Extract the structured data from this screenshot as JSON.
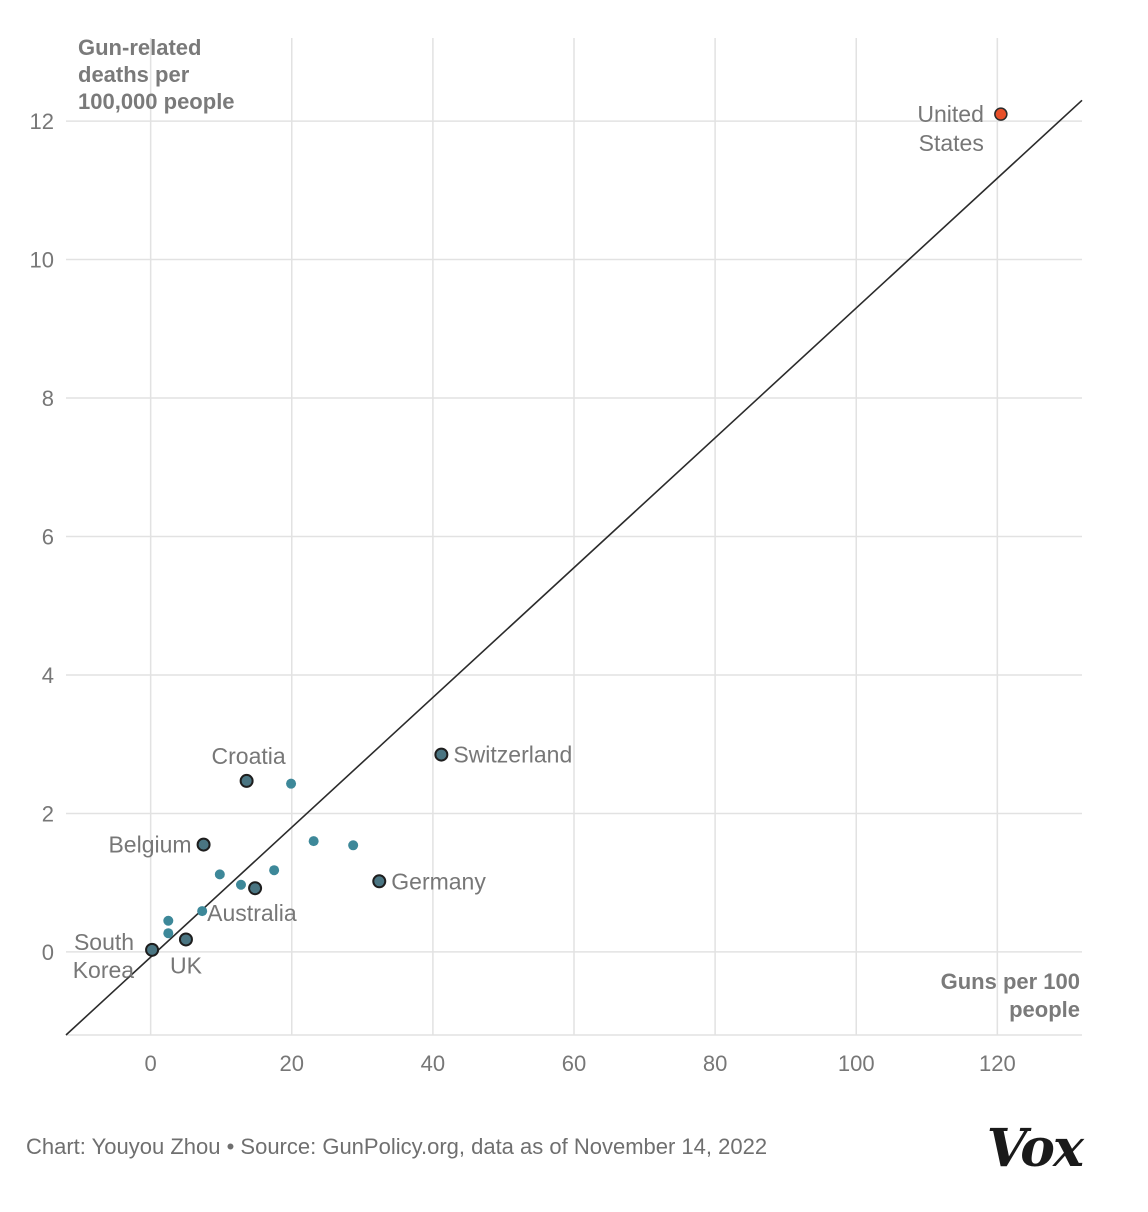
{
  "chart_data": {
    "type": "scatter",
    "xlabel": [
      "Guns per 100",
      "people"
    ],
    "ylabel": [
      "Gun-related",
      "deaths per",
      "100,000 people"
    ],
    "xlim": [
      -12,
      132
    ],
    "ylim": [
      -1.2,
      13.2
    ],
    "xticks": [
      0,
      20,
      40,
      60,
      80,
      100,
      120
    ],
    "yticks": [
      0,
      2,
      4,
      6,
      8,
      10,
      12
    ],
    "grid": true,
    "trendline": {
      "x1": -12,
      "y1": -1.2,
      "x2": 132,
      "y2": 12.3
    },
    "points": [
      {
        "x": 0.2,
        "y": 0.03,
        "label": [
          "South",
          "Korea"
        ],
        "highlight": true
      },
      {
        "x": 5,
        "y": 0.18,
        "label": [
          "UK"
        ],
        "highlight": true
      },
      {
        "x": 7.5,
        "y": 1.55,
        "label": [
          "Belgium"
        ],
        "highlight": true
      },
      {
        "x": 7.3,
        "y": 0.59,
        "label": [
          "Australia"
        ],
        "highlight": false
      },
      {
        "x": 13.6,
        "y": 2.47,
        "label": [
          "Croatia"
        ],
        "highlight": true
      },
      {
        "x": 14.8,
        "y": 0.92,
        "label": [],
        "highlight": true
      },
      {
        "x": 41.2,
        "y": 2.85,
        "label": [
          "Switzerland"
        ],
        "highlight": true
      },
      {
        "x": 32.4,
        "y": 1.02,
        "label": [
          "Germany"
        ],
        "highlight": true
      },
      {
        "x": 120.5,
        "y": 12.1,
        "label": [
          "United",
          "States"
        ],
        "highlight": true,
        "us": true
      },
      {
        "x": 2.5,
        "y": 0.45,
        "label": [],
        "highlight": false
      },
      {
        "x": 2.5,
        "y": 0.27,
        "label": [],
        "highlight": false
      },
      {
        "x": 9.8,
        "y": 1.12,
        "label": [],
        "highlight": false
      },
      {
        "x": 12.8,
        "y": 0.97,
        "label": [],
        "highlight": false
      },
      {
        "x": 17.5,
        "y": 1.18,
        "label": [],
        "highlight": false
      },
      {
        "x": 19.9,
        "y": 2.43,
        "label": [],
        "highlight": false
      },
      {
        "x": 23.1,
        "y": 1.6,
        "label": [],
        "highlight": false
      },
      {
        "x": 28.7,
        "y": 1.54,
        "label": [],
        "highlight": false
      }
    ],
    "colors": {
      "us": "#e8502a",
      "highlight": "#4a7582",
      "dot": "#3d8899",
      "line": "#2b2b2b",
      "grid": "#e2e2e2"
    }
  },
  "footer": "Chart: Youyou Zhou • Source: GunPolicy.org, data as of November 14, 2022",
  "logo": "Vox"
}
